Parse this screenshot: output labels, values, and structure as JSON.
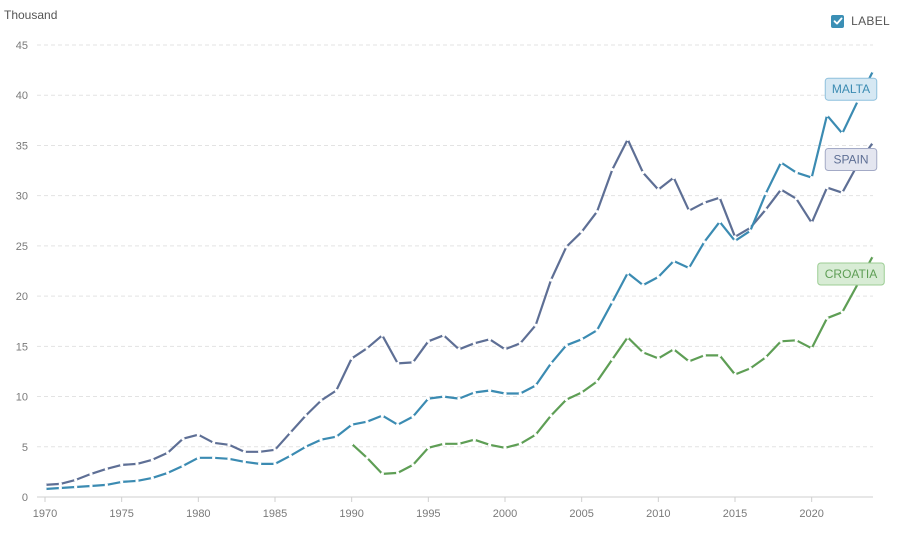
{
  "legend_toggle": {
    "label": "LABEL",
    "checked": true
  },
  "colors": {
    "grid": "#e3e3e3",
    "axis": "#cfcfcf",
    "tick_text": "#7a7a7a"
  },
  "chart_data": {
    "type": "line",
    "title": "",
    "ylabel": "Thousand",
    "xlabel": "",
    "xlim": [
      1970,
      2024
    ],
    "ylim": [
      0,
      45
    ],
    "x_ticks": [
      1970,
      1975,
      1980,
      1985,
      1990,
      1995,
      2000,
      2005,
      2010,
      2015,
      2020
    ],
    "y_ticks": [
      0,
      5,
      10,
      15,
      20,
      25,
      30,
      35,
      40,
      45
    ],
    "grid": true,
    "series": [
      {
        "name": "SPAIN",
        "color": "#5e6f95",
        "tag_fill": "#e4e6f0",
        "tag_stroke": "#a3aac6",
        "tag_text": "#5e6f95",
        "x": [
          1970,
          1971,
          1972,
          1973,
          1974,
          1975,
          1976,
          1977,
          1978,
          1979,
          1980,
          1981,
          1982,
          1983,
          1984,
          1985,
          1986,
          1987,
          1988,
          1989,
          1990,
          1991,
          1992,
          1993,
          1994,
          1995,
          1996,
          1997,
          1998,
          1999,
          2000,
          2001,
          2002,
          2003,
          2004,
          2005,
          2006,
          2007,
          2008,
          2009,
          2010,
          2011,
          2012,
          2013,
          2014,
          2015,
          2016,
          2017,
          2018,
          2019,
          2020,
          2021,
          2022,
          2023,
          2024
        ],
        "y": [
          1.2,
          1.3,
          1.7,
          2.3,
          2.8,
          3.2,
          3.3,
          3.7,
          4.4,
          5.8,
          6.2,
          5.4,
          5.2,
          4.5,
          4.5,
          4.7,
          6.4,
          8.1,
          9.6,
          10.6,
          13.8,
          14.8,
          16.1,
          13.3,
          13.4,
          15.5,
          16.1,
          14.7,
          15.3,
          15.7,
          14.7,
          15.3,
          17.1,
          21.6,
          24.9,
          26.4,
          28.4,
          32.6,
          35.6,
          32.3,
          30.6,
          31.8,
          28.5,
          29.3,
          29.8,
          25.9,
          26.8,
          28.6,
          30.6,
          29.7,
          27.3,
          30.8,
          30.3,
          33.1,
          35.3
        ]
      },
      {
        "name": "MALTA",
        "color": "#3b8bb2",
        "tag_fill": "#d6e8f3",
        "tag_stroke": "#8ec0dd",
        "tag_text": "#3b8bb2",
        "x": [
          1970,
          1971,
          1972,
          1973,
          1974,
          1975,
          1976,
          1977,
          1978,
          1979,
          1980,
          1981,
          1982,
          1983,
          1984,
          1985,
          1986,
          1987,
          1988,
          1989,
          1990,
          1991,
          1992,
          1993,
          1994,
          1995,
          1996,
          1997,
          1998,
          1999,
          2000,
          2001,
          2002,
          2003,
          2004,
          2005,
          2006,
          2007,
          2008,
          2009,
          2010,
          2011,
          2012,
          2013,
          2014,
          2015,
          2016,
          2017,
          2018,
          2019,
          2020,
          2021,
          2022,
          2023,
          2024
        ],
        "y": [
          0.8,
          0.9,
          1.0,
          1.1,
          1.2,
          1.5,
          1.6,
          1.9,
          2.4,
          3.1,
          3.9,
          3.9,
          3.8,
          3.5,
          3.3,
          3.3,
          4.1,
          5.0,
          5.7,
          6.0,
          7.2,
          7.5,
          8.1,
          7.2,
          8.0,
          9.8,
          10.0,
          9.8,
          10.4,
          10.6,
          10.3,
          10.3,
          11.1,
          13.3,
          15.1,
          15.7,
          16.6,
          19.4,
          22.3,
          21.1,
          21.9,
          23.5,
          22.8,
          25.4,
          27.4,
          25.5,
          26.5,
          30.2,
          33.3,
          32.3,
          31.8,
          38.0,
          36.2,
          39.4,
          42.4
        ]
      },
      {
        "name": "CROATIA",
        "color": "#5e9e55",
        "tag_fill": "#d8ecd5",
        "tag_stroke": "#9ccd94",
        "tag_text": "#5e9e55",
        "x": [
          1990,
          1991,
          1992,
          1993,
          1994,
          1995,
          1996,
          1997,
          1998,
          1999,
          2000,
          2001,
          2002,
          2003,
          2004,
          2005,
          2006,
          2007,
          2008,
          2009,
          2010,
          2011,
          2012,
          2013,
          2014,
          2015,
          2016,
          2017,
          2018,
          2019,
          2020,
          2021,
          2022,
          2023,
          2024
        ],
        "y": [
          5.3,
          3.9,
          2.3,
          2.4,
          3.2,
          4.9,
          5.3,
          5.3,
          5.7,
          5.2,
          4.9,
          5.3,
          6.2,
          8.1,
          9.7,
          10.4,
          11.5,
          13.7,
          15.9,
          14.4,
          13.8,
          14.7,
          13.5,
          14.1,
          14.1,
          12.2,
          12.8,
          13.9,
          15.5,
          15.6,
          14.8,
          17.8,
          18.4,
          21.2,
          24.0
        ]
      }
    ]
  }
}
